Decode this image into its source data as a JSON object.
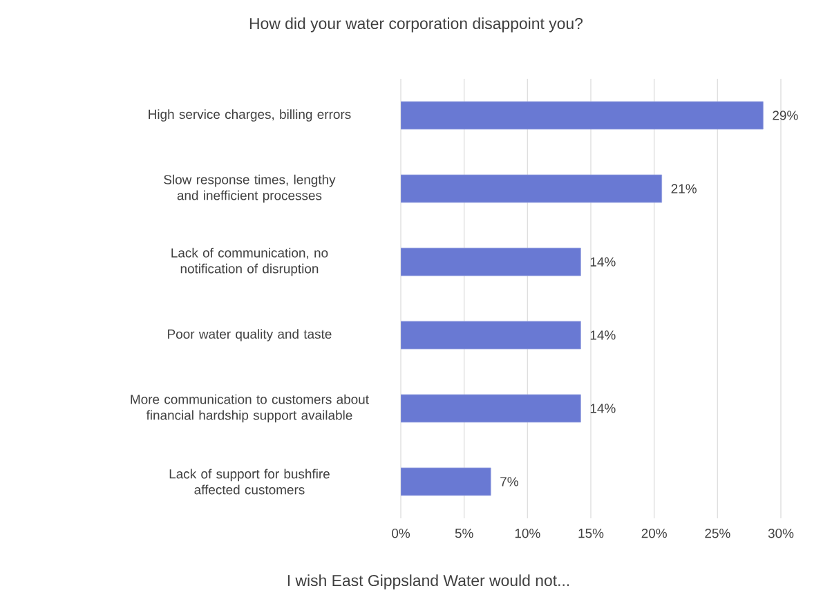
{
  "chart_data": {
    "type": "bar",
    "orientation": "horizontal",
    "title": "How did your water corporation disappoint you?",
    "xlabel": "I wish East Gippsland Water would not...",
    "categories": [
      "High service charges, billing errors",
      "Slow response times, lengthy and inefficient processes",
      "Lack of communication, no notification of disruption",
      "Poor water quality and taste",
      "More communication to customers about financial hardship support available",
      "Lack of support for bushfire affected customers"
    ],
    "values": [
      28.6,
      20.6,
      14.2,
      14.2,
      14.2,
      7.1
    ],
    "value_labels": [
      "29%",
      "21%",
      "14%",
      "14%",
      "14%",
      "7%"
    ],
    "color": "#6979d3",
    "xlim": [
      0,
      30
    ],
    "xticks": [
      {
        "value": 0,
        "label": "0%"
      },
      {
        "value": 5,
        "label": "5%"
      },
      {
        "value": 10,
        "label": "10%"
      },
      {
        "value": 15,
        "label": "15%"
      },
      {
        "value": 20,
        "label": "20%"
      },
      {
        "value": 25,
        "label": "25%"
      },
      {
        "value": 30,
        "label": "30%"
      }
    ],
    "grid": "x"
  }
}
